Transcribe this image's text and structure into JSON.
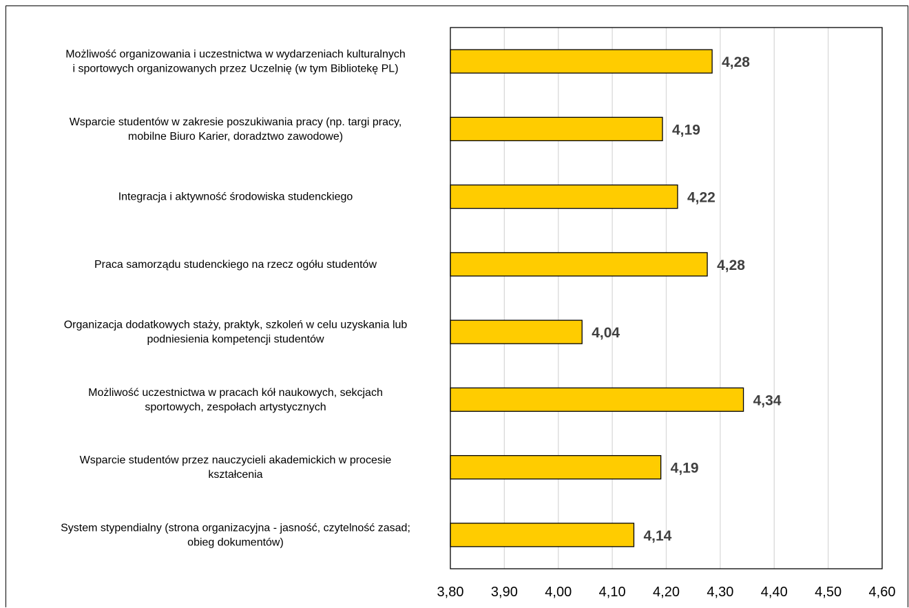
{
  "chart_data": {
    "type": "bar",
    "orientation": "horizontal",
    "title": "",
    "xlabel": "",
    "ylabel": "",
    "xlim": [
      3.8,
      4.6
    ],
    "x_ticks": [
      3.8,
      3.9,
      4.0,
      4.1,
      4.2,
      4.3,
      4.4,
      4.5,
      4.6
    ],
    "x_tick_labels": [
      "3,80",
      "3,90",
      "4,00",
      "4,10",
      "4,20",
      "4,30",
      "4,40",
      "4,50",
      "4,60"
    ],
    "grid": "vertical",
    "legend": "none",
    "bar_color": "#FFCC00",
    "bar_edge_color": "#000000",
    "grid_color": "#D9D9D9",
    "data_label_color": "#404040",
    "categories": [
      [
        "Możliwość organizowania i uczestnictwa w wydarzeniach kulturalnych",
        "i sportowych organizowanych przez Uczelnię (w tym Bibliotekę PL)"
      ],
      [
        "Wsparcie studentów w zakresie poszukiwania pracy (np. targi pracy,",
        "mobilne Biuro Karier, doradztwo zawodowe)"
      ],
      [
        "Integracja i aktywność środowiska studenckiego"
      ],
      [
        "Praca samorządu studenckiego na rzecz ogółu studentów"
      ],
      [
        "Organizacja dodatkowych staży, praktyk, szkoleń w celu uzyskania lub",
        "podniesienia kompetencji studentów"
      ],
      [
        "Możliwość uczestnictwa w pracach kół naukowych, sekcjach",
        "sportowych, zespołach artystycznych"
      ],
      [
        "Wsparcie studentów przez nauczycieli akademickich w procesie",
        "kształcenia"
      ],
      [
        "System stypendialny (strona organizacyjna - jasność, czytelność zasad;",
        "obieg dokumentów)"
      ]
    ],
    "values": [
      4.285,
      4.193,
      4.221,
      4.276,
      4.044,
      4.343,
      4.19,
      4.14
    ],
    "data_labels": [
      "4,28",
      "4,19",
      "4,22",
      "4,28",
      "4,04",
      "4,34",
      "4,19",
      "4,14"
    ]
  }
}
